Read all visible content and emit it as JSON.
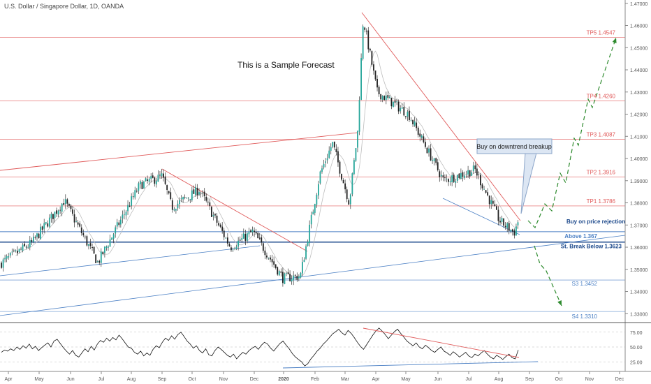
{
  "header": {
    "title": "U.S. Dollar / Singapore Dollar, 1D, OANDA"
  },
  "annotations": {
    "sample_text": "This is a Sample Forecast",
    "callout": "Buy on downtrend breakup",
    "buy_rejection": "Buy on price rejection"
  },
  "colors": {
    "bull": "#26a69a",
    "bear": "#222222",
    "red": "#e05a5a",
    "blue": "#4a7fc4",
    "navy": "#1e4a8c",
    "green": "#2e8b2e"
  },
  "chart_data": [
    {
      "type": "candlestick",
      "symbol": "U.S. Dollar / Singapore Dollar, 1D, OANDA",
      "x_ticks": [
        "Apr",
        "May",
        "Jun",
        "Jul",
        "Aug",
        "Sep",
        "Oct",
        "Nov",
        "Dec",
        "2020",
        "Feb",
        "Mar",
        "Apr",
        "May",
        "Jun",
        "Jul",
        "Aug",
        "Sep",
        "Oct",
        "Nov",
        "Dec"
      ],
      "y_ticks": [
        "1.47000",
        "1.46000",
        "1.45000",
        "1.44000",
        "1.43000",
        "1.42000",
        "1.41000",
        "1.40000",
        "1.39000",
        "1.38000",
        "1.37000",
        "1.36000",
        "1.35000",
        "1.34000",
        "1.33000"
      ],
      "ylim": [
        1.326,
        1.4715
      ],
      "key_points": [
        {
          "x": "Apr 2019",
          "y": 1.3525
        },
        {
          "x": "May 2019",
          "y": 1.362
        },
        {
          "x": "mid May 2019",
          "y": 1.381
        },
        {
          "x": "late Jun 2019",
          "y": 1.353
        },
        {
          "x": "Aug 2019",
          "y": 1.388
        },
        {
          "x": "early Sep 2019",
          "y": 1.392
        },
        {
          "x": "mid Sep 2019",
          "y": 1.378
        },
        {
          "x": "Oct 2019",
          "y": 1.386
        },
        {
          "x": "Nov 2019",
          "y": 1.36
        },
        {
          "x": "mid Dec 2019",
          "y": 1.367
        },
        {
          "x": "Dec 2019",
          "y": 1.346
        },
        {
          "x": "early Jan 2020",
          "y": 1.347
        },
        {
          "x": "Feb 2020",
          "y": 1.393
        },
        {
          "x": "mid Feb 2020",
          "y": 1.407
        },
        {
          "x": "late Feb 2020",
          "y": 1.38
        },
        {
          "x": "early Mar 2020",
          "y": 1.412
        },
        {
          "x": "late Mar 2020",
          "y": 1.463
        },
        {
          "x": "early Apr 2020",
          "y": 1.43
        },
        {
          "x": "May 2020",
          "y": 1.42
        },
        {
          "x": "early Jun 2020",
          "y": 1.39
        },
        {
          "x": "Jul 2020",
          "y": 1.395
        },
        {
          "x": "Aug 2020",
          "y": 1.372
        },
        {
          "x": "late Aug 2020",
          "y": 1.3665
        },
        {
          "x": "end Aug 2020",
          "y": 1.372
        }
      ],
      "levels": [
        {
          "label": "TP5 1.4547",
          "value": 1.4547
        },
        {
          "label": "TP4 1.4260",
          "value": 1.426
        },
        {
          "label": "TP3 1.4087",
          "value": 1.4087
        },
        {
          "label": "TP2 1.3916",
          "value": 1.3916
        },
        {
          "label": "TP1 1.3786",
          "value": 1.3786
        },
        {
          "label": "Above 1.367",
          "value": 1.367
        },
        {
          "label": "St. Break Below 1.3623",
          "value": 1.3623
        },
        {
          "label": "S3 1.3452",
          "value": 1.3452
        },
        {
          "label": "S4 1.3310",
          "value": 1.331
        }
      ]
    },
    {
      "type": "line",
      "y_ticks": [
        "75.00",
        "50.00",
        "25.00"
      ],
      "ylim": [
        10,
        90
      ],
      "values": [
        41,
        45,
        43,
        47,
        44,
        50,
        46,
        52,
        48,
        55,
        47,
        51,
        44,
        49,
        53,
        57,
        50,
        60,
        63,
        56,
        49,
        43,
        38,
        44,
        36,
        33,
        40,
        47,
        42,
        51,
        45,
        55,
        61,
        58,
        65,
        60,
        66,
        62,
        70,
        64,
        57,
        50,
        48,
        41,
        38,
        43,
        35,
        40,
        36,
        46,
        52,
        49,
        58,
        65,
        61,
        69,
        63,
        71,
        75,
        68,
        60,
        55,
        48,
        52,
        44,
        40,
        47,
        37,
        35,
        44,
        50,
        46,
        41,
        36,
        33,
        38,
        30,
        36,
        41,
        38,
        44,
        48,
        51,
        46,
        53,
        58,
        55,
        48,
        43,
        50,
        56,
        60,
        53,
        47,
        39,
        33,
        29,
        25,
        18,
        22,
        30,
        36,
        43,
        48,
        55,
        60,
        66,
        72,
        76,
        80,
        74,
        70,
        78,
        73,
        66,
        58,
        51,
        46,
        54,
        62,
        70,
        77,
        82,
        77,
        71,
        64,
        70,
        76,
        80,
        73,
        67,
        60,
        56,
        52,
        57,
        50,
        47,
        53,
        49,
        44,
        41,
        46,
        50,
        43,
        40,
        36,
        42,
        38,
        33,
        37,
        41,
        35,
        32,
        38,
        35,
        40,
        44,
        38,
        33,
        30,
        36,
        33,
        29,
        34,
        38,
        32,
        30,
        45
      ]
    }
  ]
}
